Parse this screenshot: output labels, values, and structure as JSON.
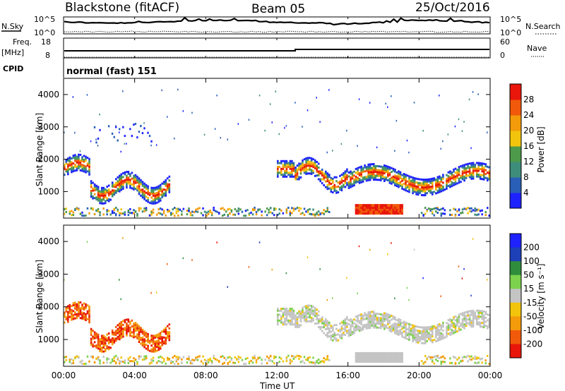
{
  "header": {
    "station": "Blackstone (fitACF)",
    "beam": "Beam 05",
    "date": "25/Oct/2016"
  },
  "top_panels": {
    "nsky_label": "N.Sky",
    "nsearch_label": "N.Search",
    "freq_label": "Freq.",
    "freq_unit": "[MHz]",
    "nave_label": "Nave",
    "cpid_label": "CPID",
    "cpid_value": "normal (fast) 151",
    "noise_ticks_left": [
      "10^5",
      "10^0"
    ],
    "noise_ticks_right": [
      "10^5",
      "10^0"
    ],
    "freq_ticks": [
      "18",
      "8"
    ],
    "nave_ticks": [
      "60",
      "0"
    ]
  },
  "colors": {
    "power_scale": [
      "#1e22ff",
      "#2a5fb8",
      "#3e8d7a",
      "#4d9a4a",
      "#f2c40c",
      "#f39b0a",
      "#f05a0a",
      "#e8160b"
    ],
    "velocity_scale": [
      "#1e22ff",
      "#1d3fb8",
      "#2e8c3c",
      "#7cd24c",
      "#c4c4c4",
      "#f2c40c",
      "#f39b0a",
      "#f05a0a",
      "#e8160b"
    ]
  },
  "chart_data": [
    {
      "type": "heatmap",
      "title": "Power",
      "xlabel": "Time UT",
      "ylabel": "Slant Range [km]",
      "colorbar_label": "Power [dB]",
      "xlim": [
        0,
        24
      ],
      "ylim": [
        180,
        4500
      ],
      "x_ticks": [
        "00:00",
        "04:00",
        "08:00",
        "12:00",
        "16:00",
        "20:00",
        "00:00"
      ],
      "y_ticks": [
        "1000",
        "2000",
        "3000",
        "4000"
      ],
      "colorbar_ticks": [
        "4",
        "8",
        "12",
        "16",
        "20",
        "24",
        "28"
      ],
      "colorbar_range": [
        0,
        32
      ]
    },
    {
      "type": "heatmap",
      "title": "Velocity",
      "xlabel": "Time UT",
      "ylabel": "Slant Range [km]",
      "colorbar_label": "Velocity [m s⁻¹]",
      "xlim": [
        0,
        24
      ],
      "ylim": [
        180,
        4500
      ],
      "x_ticks": [
        "00:00",
        "04:00",
        "08:00",
        "12:00",
        "16:00",
        "20:00",
        "00:00"
      ],
      "y_ticks": [
        "1000",
        "2000",
        "3000",
        "4000"
      ],
      "colorbar_ticks": [
        "200",
        "100",
        "50",
        "15",
        "-15",
        "-50",
        "-100",
        "-200"
      ]
    }
  ]
}
